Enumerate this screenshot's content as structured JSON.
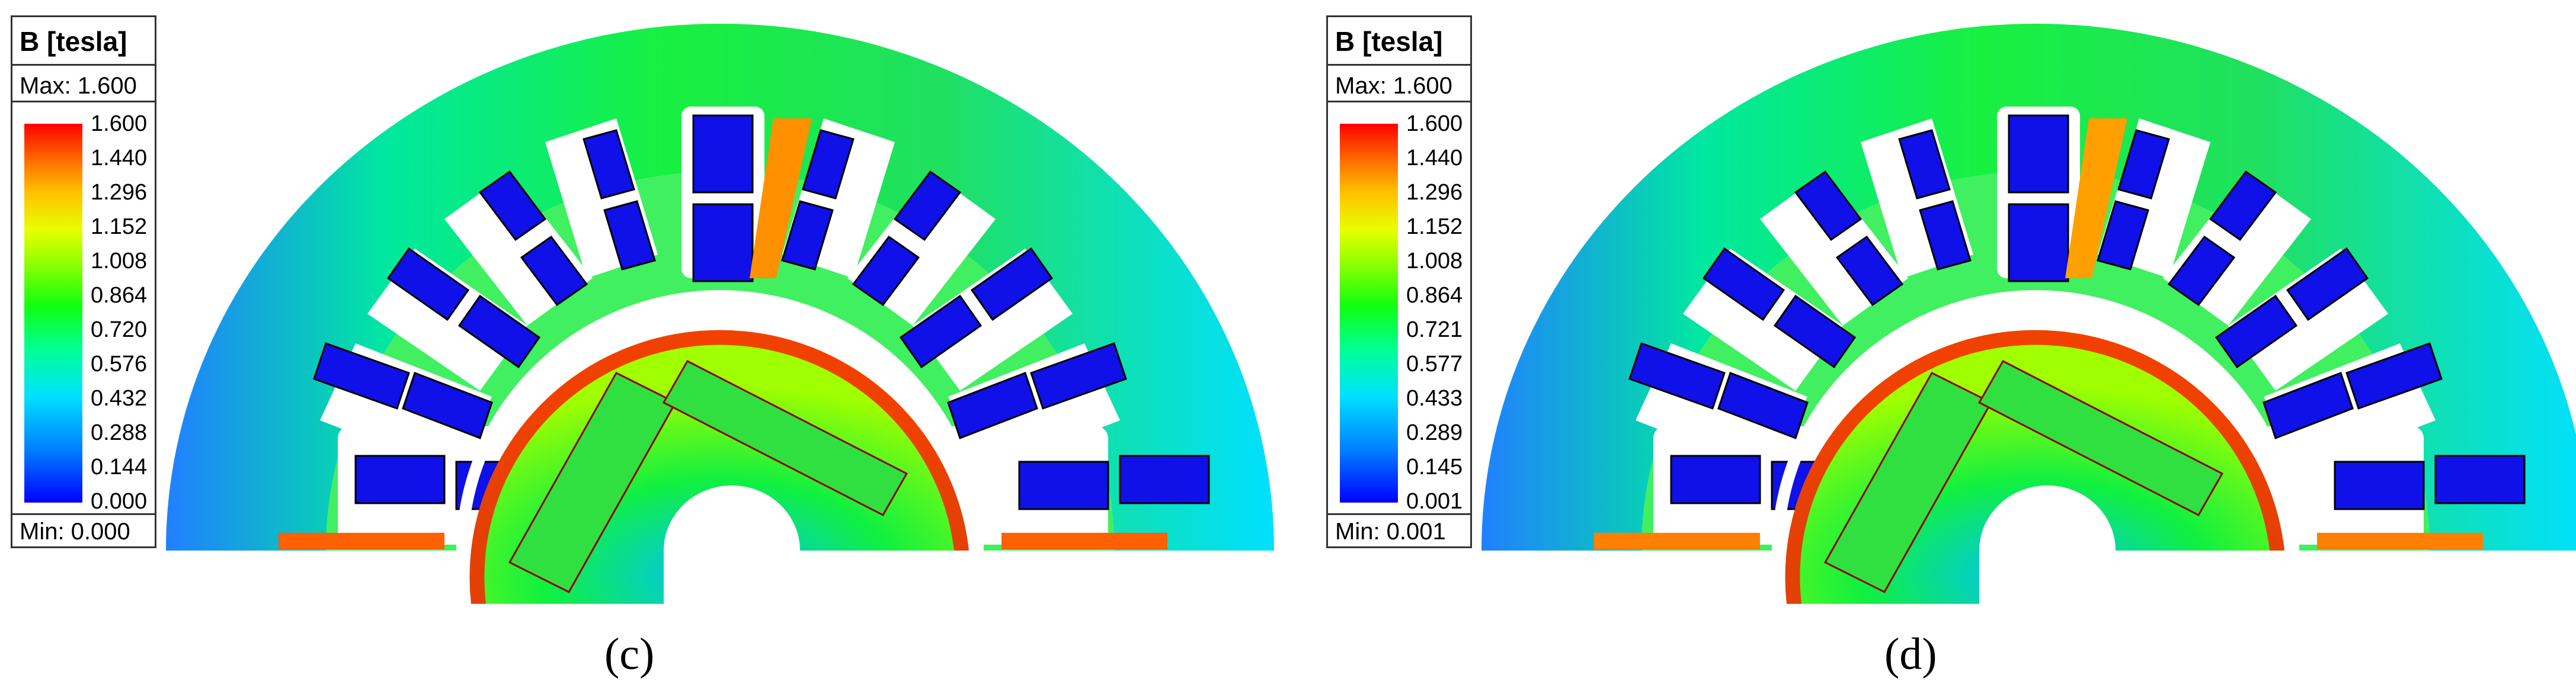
{
  "panels": [
    {
      "legend": {
        "title": "B [tesla]",
        "max_label": "Max: 1.600",
        "min_label": "Min: 0.000",
        "ticks": [
          "1.600",
          "1.440",
          "1.296",
          "1.152",
          "1.008",
          "0.864",
          "0.720",
          "0.576",
          "0.432",
          "0.288",
          "0.144",
          "0.000"
        ]
      },
      "caption": "(c)"
    },
    {
      "legend": {
        "title": "B [tesla]",
        "max_label": "Max: 1.600",
        "min_label": "Min: 0.001",
        "ticks": [
          "1.600",
          "1.440",
          "1.296",
          "1.152",
          "1.008",
          "0.864",
          "0.721",
          "0.577",
          "0.433",
          "0.289",
          "0.145",
          "0.001"
        ]
      },
      "caption": "(d)"
    }
  ],
  "colors": {
    "low": "#0000ff",
    "mid": "#10ff10",
    "high": "#ff0000",
    "frame": "#333333"
  }
}
